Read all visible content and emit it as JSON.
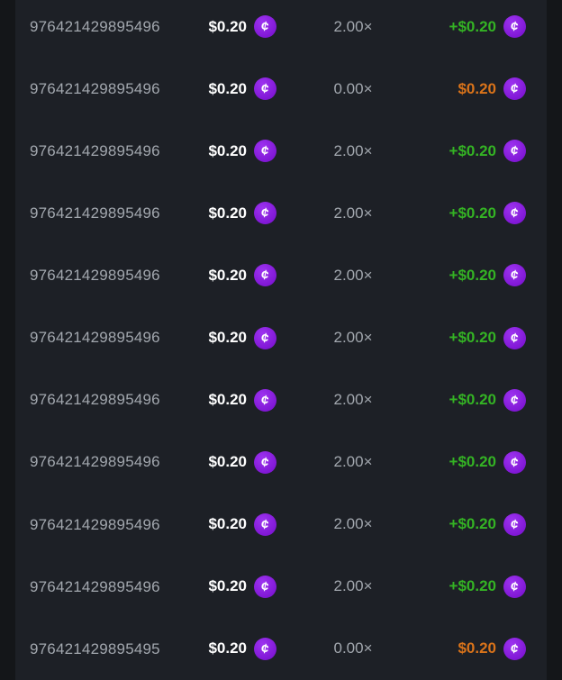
{
  "colors": {
    "page_bg": "#141619",
    "card_bg": "#1d2026",
    "muted": "#a2a7ae",
    "white": "#ffffff",
    "win": "#34b324",
    "loss": "#d9731a",
    "coin": "#7f16d4",
    "coin_hi": "#9d33f0"
  },
  "icons": {
    "coin_glyph": "¢"
  },
  "table": {
    "rows": [
      {
        "bet_id": "976421429895496",
        "amount": "$0.20",
        "multiplier": "2.00×",
        "payout": "+$0.20",
        "result": "win"
      },
      {
        "bet_id": "976421429895496",
        "amount": "$0.20",
        "multiplier": "0.00×",
        "payout": "$0.20",
        "result": "loss"
      },
      {
        "bet_id": "976421429895496",
        "amount": "$0.20",
        "multiplier": "2.00×",
        "payout": "+$0.20",
        "result": "win"
      },
      {
        "bet_id": "976421429895496",
        "amount": "$0.20",
        "multiplier": "2.00×",
        "payout": "+$0.20",
        "result": "win"
      },
      {
        "bet_id": "976421429895496",
        "amount": "$0.20",
        "multiplier": "2.00×",
        "payout": "+$0.20",
        "result": "win"
      },
      {
        "bet_id": "976421429895496",
        "amount": "$0.20",
        "multiplier": "2.00×",
        "payout": "+$0.20",
        "result": "win"
      },
      {
        "bet_id": "976421429895496",
        "amount": "$0.20",
        "multiplier": "2.00×",
        "payout": "+$0.20",
        "result": "win"
      },
      {
        "bet_id": "976421429895496",
        "amount": "$0.20",
        "multiplier": "2.00×",
        "payout": "+$0.20",
        "result": "win"
      },
      {
        "bet_id": "976421429895496",
        "amount": "$0.20",
        "multiplier": "2.00×",
        "payout": "+$0.20",
        "result": "win"
      },
      {
        "bet_id": "976421429895496",
        "amount": "$0.20",
        "multiplier": "2.00×",
        "payout": "+$0.20",
        "result": "win"
      },
      {
        "bet_id": "976421429895495",
        "amount": "$0.20",
        "multiplier": "0.00×",
        "payout": "$0.20",
        "result": "loss"
      }
    ]
  }
}
